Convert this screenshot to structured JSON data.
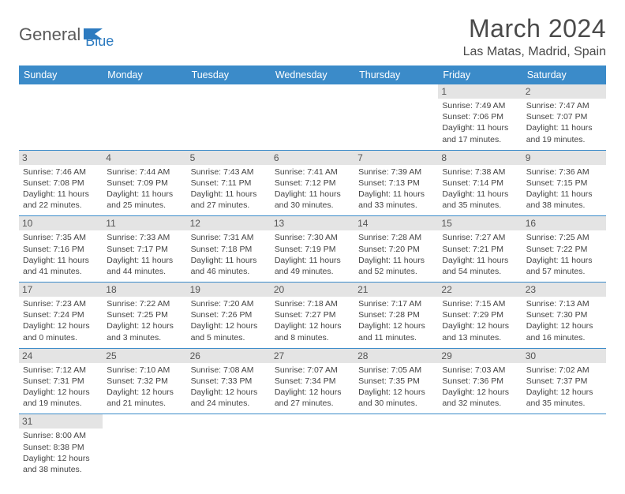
{
  "logo": {
    "text1": "General",
    "text2": "Blue"
  },
  "title": "March 2024",
  "location": "Las Matas, Madrid, Spain",
  "weekdays": [
    "Sunday",
    "Monday",
    "Tuesday",
    "Wednesday",
    "Thursday",
    "Friday",
    "Saturday"
  ],
  "colors": {
    "header_bg": "#3b8bc9",
    "header_fg": "#ffffff",
    "daynum_bg": "#e4e4e4",
    "text": "#444444",
    "title": "#4a4a4a"
  },
  "days": {
    "1": {
      "sunrise": "Sunrise: 7:49 AM",
      "sunset": "Sunset: 7:06 PM",
      "daylight": "Daylight: 11 hours and 17 minutes."
    },
    "2": {
      "sunrise": "Sunrise: 7:47 AM",
      "sunset": "Sunset: 7:07 PM",
      "daylight": "Daylight: 11 hours and 19 minutes."
    },
    "3": {
      "sunrise": "Sunrise: 7:46 AM",
      "sunset": "Sunset: 7:08 PM",
      "daylight": "Daylight: 11 hours and 22 minutes."
    },
    "4": {
      "sunrise": "Sunrise: 7:44 AM",
      "sunset": "Sunset: 7:09 PM",
      "daylight": "Daylight: 11 hours and 25 minutes."
    },
    "5": {
      "sunrise": "Sunrise: 7:43 AM",
      "sunset": "Sunset: 7:11 PM",
      "daylight": "Daylight: 11 hours and 27 minutes."
    },
    "6": {
      "sunrise": "Sunrise: 7:41 AM",
      "sunset": "Sunset: 7:12 PM",
      "daylight": "Daylight: 11 hours and 30 minutes."
    },
    "7": {
      "sunrise": "Sunrise: 7:39 AM",
      "sunset": "Sunset: 7:13 PM",
      "daylight": "Daylight: 11 hours and 33 minutes."
    },
    "8": {
      "sunrise": "Sunrise: 7:38 AM",
      "sunset": "Sunset: 7:14 PM",
      "daylight": "Daylight: 11 hours and 35 minutes."
    },
    "9": {
      "sunrise": "Sunrise: 7:36 AM",
      "sunset": "Sunset: 7:15 PM",
      "daylight": "Daylight: 11 hours and 38 minutes."
    },
    "10": {
      "sunrise": "Sunrise: 7:35 AM",
      "sunset": "Sunset: 7:16 PM",
      "daylight": "Daylight: 11 hours and 41 minutes."
    },
    "11": {
      "sunrise": "Sunrise: 7:33 AM",
      "sunset": "Sunset: 7:17 PM",
      "daylight": "Daylight: 11 hours and 44 minutes."
    },
    "12": {
      "sunrise": "Sunrise: 7:31 AM",
      "sunset": "Sunset: 7:18 PM",
      "daylight": "Daylight: 11 hours and 46 minutes."
    },
    "13": {
      "sunrise": "Sunrise: 7:30 AM",
      "sunset": "Sunset: 7:19 PM",
      "daylight": "Daylight: 11 hours and 49 minutes."
    },
    "14": {
      "sunrise": "Sunrise: 7:28 AM",
      "sunset": "Sunset: 7:20 PM",
      "daylight": "Daylight: 11 hours and 52 minutes."
    },
    "15": {
      "sunrise": "Sunrise: 7:27 AM",
      "sunset": "Sunset: 7:21 PM",
      "daylight": "Daylight: 11 hours and 54 minutes."
    },
    "16": {
      "sunrise": "Sunrise: 7:25 AM",
      "sunset": "Sunset: 7:22 PM",
      "daylight": "Daylight: 11 hours and 57 minutes."
    },
    "17": {
      "sunrise": "Sunrise: 7:23 AM",
      "sunset": "Sunset: 7:24 PM",
      "daylight": "Daylight: 12 hours and 0 minutes."
    },
    "18": {
      "sunrise": "Sunrise: 7:22 AM",
      "sunset": "Sunset: 7:25 PM",
      "daylight": "Daylight: 12 hours and 3 minutes."
    },
    "19": {
      "sunrise": "Sunrise: 7:20 AM",
      "sunset": "Sunset: 7:26 PM",
      "daylight": "Daylight: 12 hours and 5 minutes."
    },
    "20": {
      "sunrise": "Sunrise: 7:18 AM",
      "sunset": "Sunset: 7:27 PM",
      "daylight": "Daylight: 12 hours and 8 minutes."
    },
    "21": {
      "sunrise": "Sunrise: 7:17 AM",
      "sunset": "Sunset: 7:28 PM",
      "daylight": "Daylight: 12 hours and 11 minutes."
    },
    "22": {
      "sunrise": "Sunrise: 7:15 AM",
      "sunset": "Sunset: 7:29 PM",
      "daylight": "Daylight: 12 hours and 13 minutes."
    },
    "23": {
      "sunrise": "Sunrise: 7:13 AM",
      "sunset": "Sunset: 7:30 PM",
      "daylight": "Daylight: 12 hours and 16 minutes."
    },
    "24": {
      "sunrise": "Sunrise: 7:12 AM",
      "sunset": "Sunset: 7:31 PM",
      "daylight": "Daylight: 12 hours and 19 minutes."
    },
    "25": {
      "sunrise": "Sunrise: 7:10 AM",
      "sunset": "Sunset: 7:32 PM",
      "daylight": "Daylight: 12 hours and 21 minutes."
    },
    "26": {
      "sunrise": "Sunrise: 7:08 AM",
      "sunset": "Sunset: 7:33 PM",
      "daylight": "Daylight: 12 hours and 24 minutes."
    },
    "27": {
      "sunrise": "Sunrise: 7:07 AM",
      "sunset": "Sunset: 7:34 PM",
      "daylight": "Daylight: 12 hours and 27 minutes."
    },
    "28": {
      "sunrise": "Sunrise: 7:05 AM",
      "sunset": "Sunset: 7:35 PM",
      "daylight": "Daylight: 12 hours and 30 minutes."
    },
    "29": {
      "sunrise": "Sunrise: 7:03 AM",
      "sunset": "Sunset: 7:36 PM",
      "daylight": "Daylight: 12 hours and 32 minutes."
    },
    "30": {
      "sunrise": "Sunrise: 7:02 AM",
      "sunset": "Sunset: 7:37 PM",
      "daylight": "Daylight: 12 hours and 35 minutes."
    },
    "31": {
      "sunrise": "Sunrise: 8:00 AM",
      "sunset": "Sunset: 8:38 PM",
      "daylight": "Daylight: 12 hours and 38 minutes."
    }
  },
  "grid": [
    [
      null,
      null,
      null,
      null,
      null,
      "1",
      "2"
    ],
    [
      "3",
      "4",
      "5",
      "6",
      "7",
      "8",
      "9"
    ],
    [
      "10",
      "11",
      "12",
      "13",
      "14",
      "15",
      "16"
    ],
    [
      "17",
      "18",
      "19",
      "20",
      "21",
      "22",
      "23"
    ],
    [
      "24",
      "25",
      "26",
      "27",
      "28",
      "29",
      "30"
    ],
    [
      "31",
      null,
      null,
      null,
      null,
      null,
      null
    ]
  ]
}
